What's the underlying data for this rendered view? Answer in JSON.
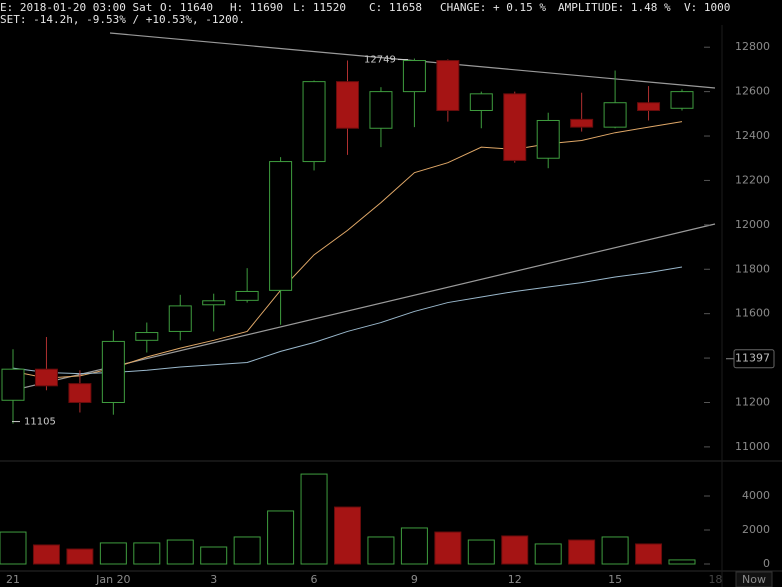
{
  "header": {
    "items": [
      "E: 2018-01-20 03:00 Sat",
      "O: 11640",
      "H: 11690",
      "L: 11520",
      "C: 11658",
      "CHANGE: + 0.15 %",
      "AMPLITUDE: 1.48 %",
      "V: 1000"
    ],
    "line2": "SET: -14.2h, -9.53% / +10.53%, -1200."
  },
  "chart_data": {
    "type": "candlestick",
    "categories": [
      "21",
      null,
      null,
      "Jan 20",
      null,
      null,
      "3",
      null,
      null,
      "6",
      null,
      null,
      "9",
      null,
      null,
      "12",
      null,
      null,
      "15",
      null,
      null,
      "18"
    ],
    "open": [
      11210,
      11350,
      11285,
      11200,
      11480,
      11520,
      11640,
      11660,
      11705,
      12285,
      12645,
      12435,
      12600,
      12740,
      12515,
      12590,
      12300,
      12475,
      12440,
      12550,
      12525,
      null
    ],
    "high": [
      11440,
      11495,
      11345,
      11525,
      11560,
      11685,
      11690,
      11805,
      12305,
      12650,
      12740,
      12620,
      12749,
      12745,
      12600,
      12600,
      12505,
      12595,
      12695,
      12625,
      12610,
      null
    ],
    "low": [
      11105,
      11255,
      11155,
      11145,
      11425,
      11480,
      11520,
      11650,
      11550,
      12245,
      12315,
      12350,
      12440,
      12465,
      12435,
      12280,
      12255,
      12420,
      12435,
      12470,
      12515,
      null
    ],
    "close": [
      11350,
      11275,
      11200,
      11475,
      11515,
      11635,
      11658,
      11700,
      12285,
      12645,
      12435,
      12600,
      12740,
      12515,
      12590,
      12290,
      12470,
      12440,
      12550,
      12515,
      12600,
      null
    ],
    "up_color": "#3f9d3f",
    "down_color": "#a51414",
    "series": [
      {
        "color": "#e0a868",
        "values": [
          11340,
          11310,
          11320,
          11355,
          11405,
          11445,
          11480,
          11520,
          11705,
          11865,
          11975,
          12100,
          12235,
          12280,
          12350,
          12340,
          12365,
          12380,
          12415,
          12440,
          12465,
          null
        ]
      },
      {
        "color": "#9ab8cc",
        "values": [
          11355,
          11335,
          11330,
          11335,
          11345,
          11360,
          11370,
          11380,
          11430,
          11470,
          11520,
          11560,
          11610,
          11650,
          11675,
          11700,
          11720,
          11740,
          11765,
          11785,
          11810,
          null
        ]
      }
    ],
    "ylim": [
      10950,
      12900
    ],
    "yticks": [
      11000,
      11200,
      11400,
      11600,
      11800,
      12000,
      12200,
      12400,
      12600,
      12800
    ],
    "last_price": 11397,
    "volume": {
      "values": [
        1880,
        1120,
        880,
        1240,
        1240,
        1410,
        1000,
        1590,
        3120,
        5290,
        3350,
        1590,
        2120,
        1880,
        1410,
        1650,
        1180,
        1410,
        1590,
        1180,
        240,
        null
      ],
      "ylim": [
        0,
        6000
      ],
      "yticks": [
        0,
        2000,
        4000
      ]
    },
    "now_label": "Now"
  }
}
